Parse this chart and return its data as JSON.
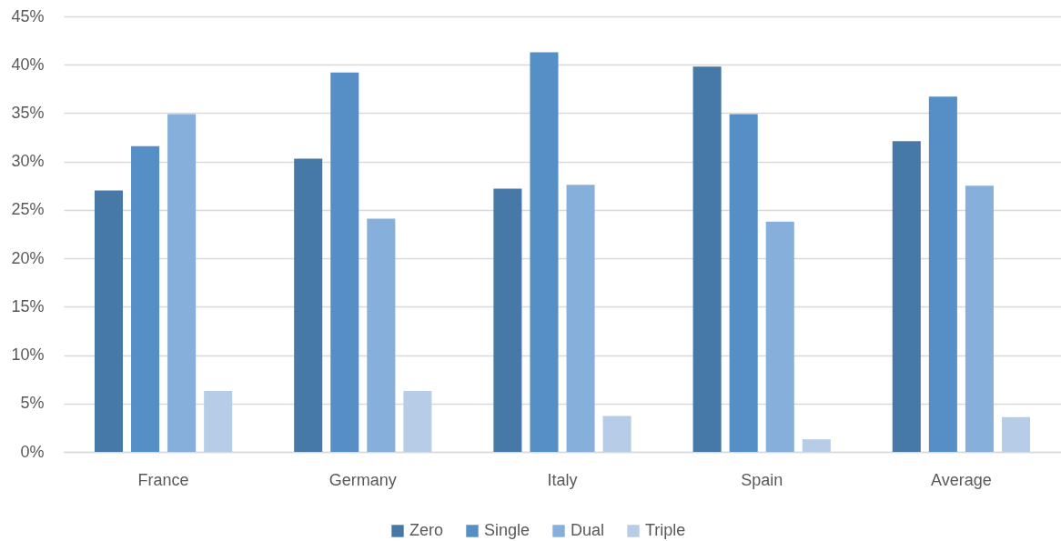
{
  "chart_data": {
    "type": "bar",
    "categories": [
      "France",
      "Germany",
      "Italy",
      "Spain",
      "Average"
    ],
    "series": [
      {
        "name": "Zero",
        "color": "#4679a8",
        "values": [
          27.0,
          30.3,
          27.2,
          39.8,
          32.1
        ]
      },
      {
        "name": "Single",
        "color": "#558fc6",
        "values": [
          31.6,
          39.2,
          41.3,
          34.9,
          36.7
        ]
      },
      {
        "name": "Dual",
        "color": "#86afdb",
        "values": [
          34.9,
          24.1,
          27.6,
          23.8,
          27.5
        ]
      },
      {
        "name": "Triple",
        "color": "#b7cde7",
        "values": [
          6.3,
          6.3,
          3.7,
          1.3,
          3.6
        ]
      }
    ],
    "ylim": [
      0,
      45
    ],
    "yticks": [
      {
        "value": 0,
        "label": "0%"
      },
      {
        "value": 5,
        "label": "5%"
      },
      {
        "value": 10,
        "label": "10%"
      },
      {
        "value": 15,
        "label": "15%"
      },
      {
        "value": 20,
        "label": "20%"
      },
      {
        "value": 25,
        "label": "25%"
      },
      {
        "value": 30,
        "label": "30%"
      },
      {
        "value": 35,
        "label": "35%"
      },
      {
        "value": 40,
        "label": "40%"
      },
      {
        "value": 45,
        "label": "45%"
      }
    ],
    "grid": "y",
    "legend": "bottom"
  }
}
